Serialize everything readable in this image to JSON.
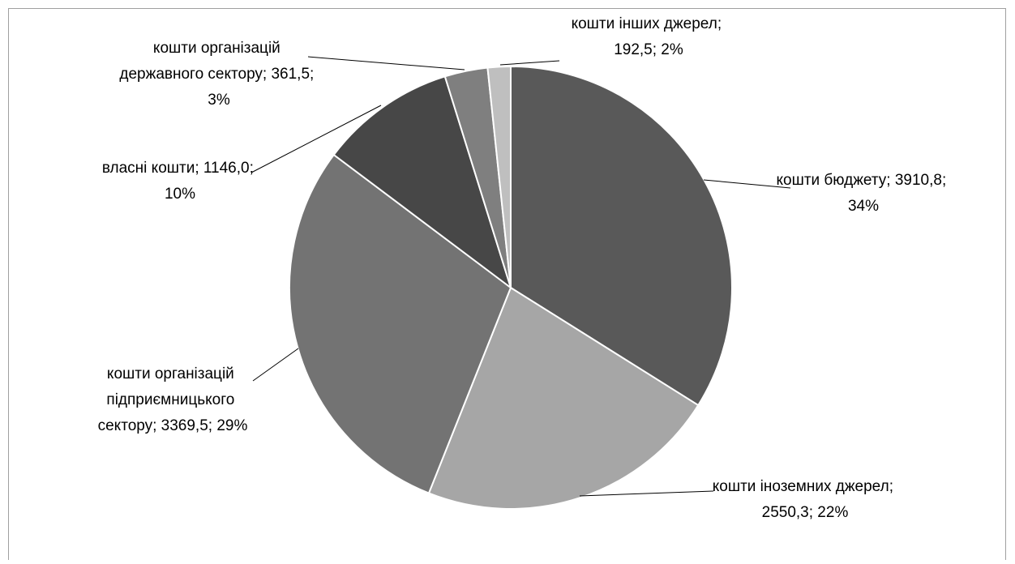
{
  "chart_data": {
    "type": "pie",
    "values": [
      3910.8,
      2550.3,
      3369.5,
      1146.0,
      361.5,
      192.5
    ],
    "value_labels": [
      "кошти бюджету; 3910,8; 34%",
      "кошти іноземних джерел; 2550,3; 22%",
      "кошти організацій підприємницького сектору; 3369,5; 29%",
      "власні кошти; 1146,0; 10%",
      "кошти організацій державного сектору; 361,5; 3%",
      "кошти інших джерел; 192,5; 2%"
    ],
    "colors": [
      "#595959",
      "#a6a6a6",
      "#737373",
      "#474747",
      "#7f7f7f",
      "#bfbfbf"
    ]
  }
}
